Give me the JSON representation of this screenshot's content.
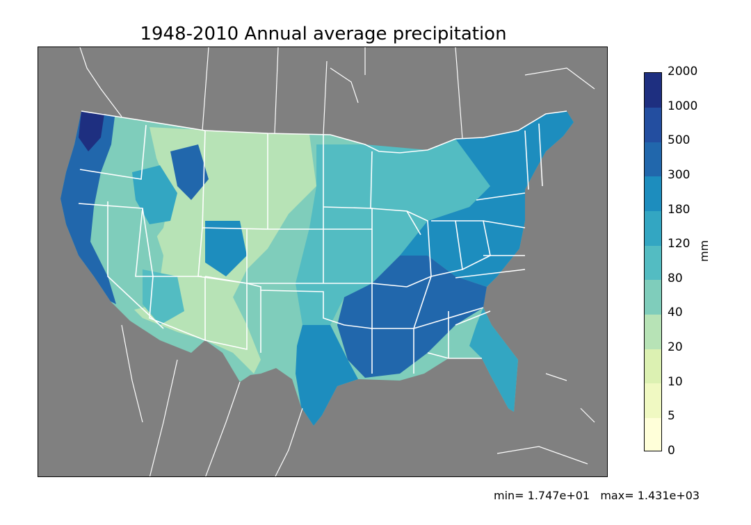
{
  "title": "1948-2010 Annual average precipitation",
  "colorbar": {
    "units": "mm",
    "levels": [
      "0",
      "5",
      "10",
      "20",
      "40",
      "80",
      "120",
      "180",
      "300",
      "500",
      "1000",
      "2000"
    ],
    "colors": [
      "#ffffd9",
      "#f0f9c2",
      "#dcf1b2",
      "#b7e3b6",
      "#7fcdbb",
      "#53bcc2",
      "#33a6c2",
      "#1d8dbe",
      "#2167ac",
      "#234ea0",
      "#1e2f80"
    ]
  },
  "stats": {
    "min_label": "min= 1.747e+01",
    "max_label": "max= 1.431e+03"
  },
  "map": {
    "background_color": "#808080",
    "border_color": "#ffffff",
    "region": "Contiguous United States"
  }
}
